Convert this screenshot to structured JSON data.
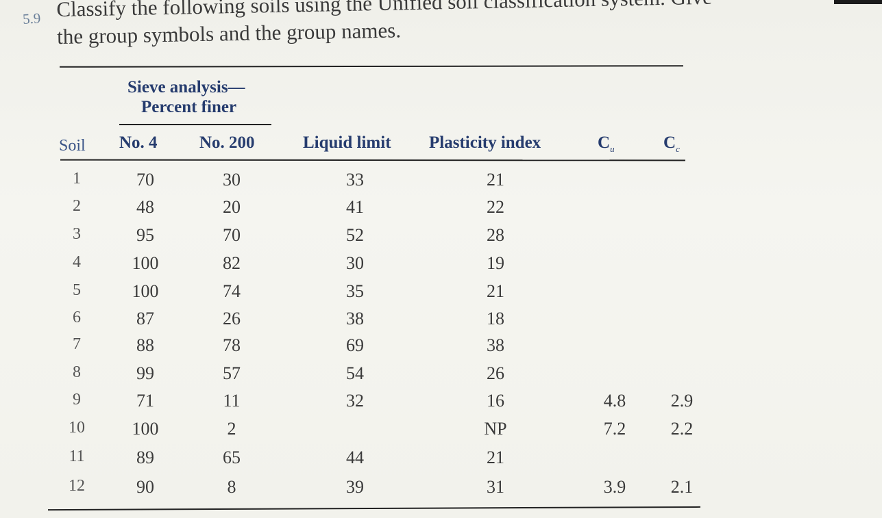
{
  "problem": {
    "number": "5.9",
    "text_line1": "Classify the following soils using the Unified soil classification system. Give",
    "text_line2": "the group symbols and the group names."
  },
  "table": {
    "group_header": {
      "line1": "Sieve analysis—",
      "line2": "Percent finer"
    },
    "columns": {
      "soil": "Soil",
      "no4": "No. 4",
      "no200": "No. 200",
      "liquid_limit": "Liquid limit",
      "plasticity_index": "Plasticity index",
      "cu": "C",
      "cu_sub": "u",
      "cc": "C",
      "cc_sub": "c"
    },
    "rows": [
      {
        "soil": "1",
        "no4": "70",
        "no200": "30",
        "ll": "33",
        "pi": "21",
        "cu": "",
        "cc": ""
      },
      {
        "soil": "2",
        "no4": "48",
        "no200": "20",
        "ll": "41",
        "pi": "22",
        "cu": "",
        "cc": ""
      },
      {
        "soil": "3",
        "no4": "95",
        "no200": "70",
        "ll": "52",
        "pi": "28",
        "cu": "",
        "cc": ""
      },
      {
        "soil": "4",
        "no4": "100",
        "no200": "82",
        "ll": "30",
        "pi": "19",
        "cu": "",
        "cc": ""
      },
      {
        "soil": "5",
        "no4": "100",
        "no200": "74",
        "ll": "35",
        "pi": "21",
        "cu": "",
        "cc": ""
      },
      {
        "soil": "6",
        "no4": "87",
        "no200": "26",
        "ll": "38",
        "pi": "18",
        "cu": "",
        "cc": ""
      },
      {
        "soil": "7",
        "no4": "88",
        "no200": "78",
        "ll": "69",
        "pi": "38",
        "cu": "",
        "cc": ""
      },
      {
        "soil": "8",
        "no4": "99",
        "no200": "57",
        "ll": "54",
        "pi": "26",
        "cu": "",
        "cc": ""
      },
      {
        "soil": "9",
        "no4": "71",
        "no200": "11",
        "ll": "32",
        "pi": "16",
        "cu": "4.8",
        "cc": "2.9"
      },
      {
        "soil": "10",
        "no4": "100",
        "no200": "2",
        "ll": "",
        "pi": "NP",
        "cu": "7.2",
        "cc": "2.2"
      },
      {
        "soil": "11",
        "no4": "89",
        "no200": "65",
        "ll": "44",
        "pi": "21",
        "cu": "",
        "cc": ""
      },
      {
        "soil": "12",
        "no4": "90",
        "no200": "8",
        "ll": "39",
        "pi": "31",
        "cu": "3.9",
        "cc": "2.1"
      }
    ]
  }
}
